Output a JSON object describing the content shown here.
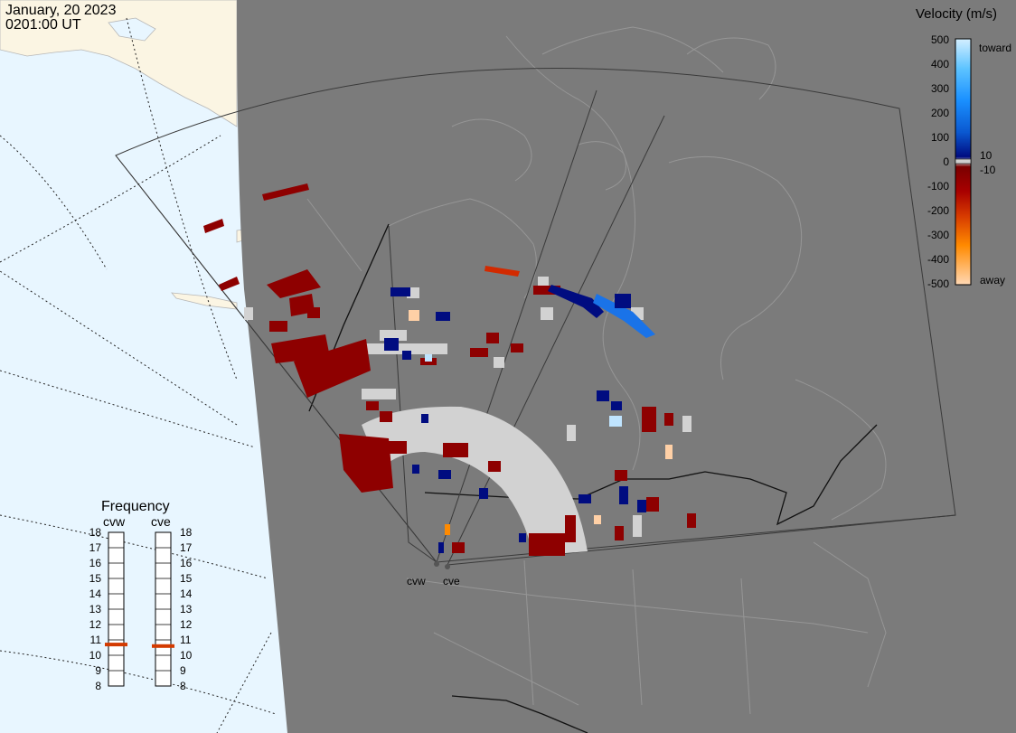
{
  "header": {
    "date": "January, 20 2023",
    "time": "0201:00 UT"
  },
  "colors": {
    "night_side": "#7b7b7b",
    "day_ocean": "#e8f6ff",
    "land_day": "#fbf5e3",
    "ground_scatter": "#d2d2d2"
  },
  "legend": {
    "title": "Velocity (m/s)",
    "ticks": [
      "500",
      "400",
      "300",
      "200",
      "100",
      "0",
      "-100",
      "-200",
      "-300",
      "-400",
      "-500"
    ],
    "zero_labels": [
      "10",
      "-10"
    ],
    "toward_label": "toward",
    "away_label": "away"
  },
  "radars": [
    {
      "code": "cvw"
    },
    {
      "code": "cve"
    }
  ],
  "frequency": {
    "title": "Frequency",
    "labels": [
      "18",
      "17",
      "16",
      "15",
      "14",
      "13",
      "12",
      "11",
      "10",
      "9",
      "8"
    ],
    "cvw_value": 10.7,
    "cve_value": 10.6
  }
}
